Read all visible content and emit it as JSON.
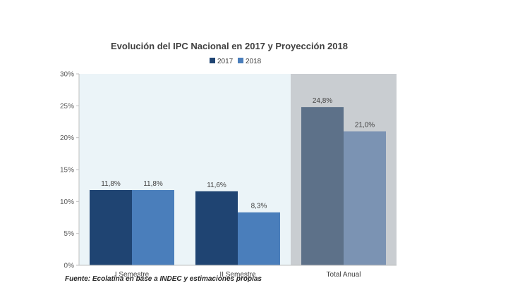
{
  "chart_data": {
    "type": "bar",
    "title": "Evolución del IPC Nacional en 2017 y Proyección 2018",
    "categories": [
      "I Semestre",
      "II Semestre",
      "Total Anual"
    ],
    "series": [
      {
        "name": "2017",
        "values": [
          11.8,
          11.6,
          24.8
        ],
        "labels": [
          "11,8%",
          "11,6%",
          "24,8%"
        ]
      },
      {
        "name": "2018",
        "values": [
          11.8,
          8.3,
          21.0
        ],
        "labels": [
          "11,8%",
          "8,3%",
          "21,0%"
        ]
      }
    ],
    "ylim": [
      0,
      30
    ],
    "yticks": [
      "0%",
      "5%",
      "10%",
      "15%",
      "20%",
      "25%",
      "30%"
    ],
    "legend_position": "top",
    "grid": false,
    "colors": {
      "series_2017": "#1f4472",
      "series_2018": "#4a7ebb",
      "series_2017_highlight": "#5d7189",
      "series_2018_highlight": "#7b93b3",
      "background_semesters": "#ebf4f8",
      "background_annual": "#c9cdd1"
    }
  },
  "source": "Fuente: Ecolatina en base a INDEC y estimaciones propias"
}
